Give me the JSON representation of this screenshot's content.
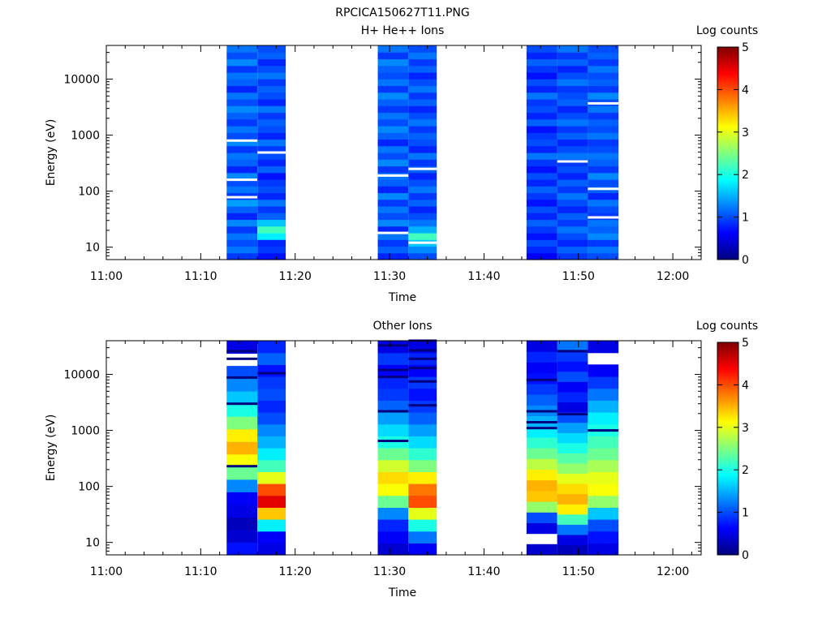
{
  "figure": {
    "title": "RPCICA150627T11.PNG"
  },
  "colormap": [
    "#00007f",
    "#0000ff",
    "#007fff",
    "#00ffff",
    "#7fff7f",
    "#ffff00",
    "#ff7f00",
    "#ff0000",
    "#7f0000"
  ],
  "chart_data": [
    {
      "type": "heatmap",
      "title": "H+ He++ Ions",
      "xlabel": "Time",
      "ylabel": "Energy (eV)",
      "x_ticks": [
        "11:00",
        "11:10",
        "11:20",
        "11:30",
        "11:40",
        "11:50",
        "12:00"
      ],
      "x_range": [
        "11:00",
        "12:03"
      ],
      "y_ticks": [
        "10",
        "100",
        "1000",
        "10000"
      ],
      "y_scale": "log",
      "y_range": [
        6,
        40000
      ],
      "colorbar": {
        "label": "Log counts",
        "ticks": [
          "0",
          "1",
          "2",
          "3",
          "4",
          "5"
        ],
        "range": [
          0,
          5
        ]
      },
      "columns": [
        {
          "start": "11:12:45",
          "end": "11:16:00",
          "profile": [
            0.9,
            1.2,
            1.0,
            1.2,
            0.9,
            1.3,
            0.8,
            1.1,
            1.4,
            0.9,
            1.2,
            1.0,
            1.3,
            0.8,
            1.1,
            1.2,
            0.9,
            1.3,
            1.0,
            1.2,
            0.9,
            1.1,
            1.3,
            1.0,
            1.2,
            0.8,
            1.1,
            1.2,
            0.9,
            1.3,
            1.0,
            1.2
          ],
          "gaps": [
            800,
            160,
            78
          ]
        },
        {
          "start": "11:16:00",
          "end": "11:19:00",
          "profile": [
            0.7,
            0.9,
            0.8,
            1.8,
            2.2,
            1.6,
            1.1,
            0.9,
            1.2,
            0.8,
            1.0,
            0.9,
            0.7,
            1.1,
            0.8,
            1.0,
            0.9,
            1.2,
            0.8,
            1.0,
            1.1,
            0.9,
            1.2,
            0.8,
            1.0,
            1.1,
            0.9,
            1.2,
            1.0,
            0.8,
            1.1,
            1.0
          ],
          "gaps": [
            490
          ]
        },
        {
          "start": "11:28:45",
          "end": "11:32:00",
          "profile": [
            0.8,
            1.1,
            0.9,
            1.2,
            0.8,
            1.3,
            1.0,
            1.2,
            0.9,
            1.3,
            0.8,
            1.1,
            1.2,
            0.9,
            1.3,
            1.0,
            1.2,
            0.8,
            1.1,
            1.3,
            1.0,
            1.2,
            0.9,
            1.1,
            1.3,
            0.9,
            1.2,
            1.0,
            1.1,
            1.3,
            0.9,
            1.2
          ],
          "gaps": [
            18,
            190
          ]
        },
        {
          "start": "11:32:00",
          "end": "11:35:00",
          "profile": [
            1.0,
            1.3,
            1.6,
            2.2,
            1.5,
            1.2,
            1.0,
            0.8,
            1.1,
            0.9,
            1.2,
            1.0,
            0.8,
            1.1,
            0.9,
            1.2,
            0.8,
            1.0,
            1.1,
            0.9,
            1.2,
            1.0,
            0.8,
            1.1,
            0.9,
            1.2,
            1.0,
            0.8,
            1.1,
            0.9,
            1.2,
            1.0
          ],
          "gaps": [
            12,
            250
          ]
        },
        {
          "start": "11:44:30",
          "end": "11:47:45",
          "profile": [
            0.6,
            0.8,
            1.0,
            0.7,
            0.9,
            1.1,
            0.8,
            1.0,
            0.7,
            0.9,
            1.1,
            0.8,
            1.0,
            0.7,
            0.9,
            1.2,
            0.8,
            1.0,
            0.9,
            0.7,
            1.1,
            0.8,
            1.0,
            0.9,
            1.2,
            0.8,
            1.0,
            0.7,
            0.9,
            1.1,
            0.8,
            1.0
          ],
          "gaps": []
        },
        {
          "start": "11:47:45",
          "end": "11:51:00",
          "profile": [
            0.9,
            1.1,
            0.8,
            1.0,
            1.2,
            0.9,
            1.1,
            0.8,
            1.0,
            1.2,
            0.9,
            1.1,
            0.8,
            1.0,
            0.9,
            1.2,
            1.0,
            0.8,
            1.1,
            0.9,
            1.2,
            1.0,
            0.8,
            1.1,
            1.0,
            0.9,
            1.2,
            1.0,
            0.8,
            1.1,
            0.9,
            1.2
          ],
          "gaps": [
            340
          ]
        },
        {
          "start": "11:51:00",
          "end": "11:54:15",
          "profile": [
            1.0,
            1.2,
            0.9,
            1.3,
            1.1,
            1.2,
            0.9,
            1.0,
            1.2,
            0.8,
            1.1,
            1.0,
            1.3,
            0.9,
            1.1,
            1.2,
            1.0,
            0.9,
            1.2,
            1.0,
            1.1,
            0.9,
            1.2,
            1.0,
            1.3,
            0.9,
            1.1,
            1.0,
            1.2,
            0.9,
            1.1,
            1.0
          ],
          "gaps": [
            34,
            110,
            3700
          ]
        }
      ]
    },
    {
      "type": "heatmap",
      "title": "Other Ions",
      "xlabel": "Time",
      "ylabel": "Energy (eV)",
      "x_ticks": [
        "11:00",
        "11:10",
        "11:20",
        "11:30",
        "11:40",
        "11:50",
        "12:00"
      ],
      "x_range": [
        "11:00",
        "12:03"
      ],
      "y_ticks": [
        "10",
        "100",
        "1000",
        "10000"
      ],
      "y_scale": "log",
      "y_range": [
        6,
        40000
      ],
      "colorbar": {
        "label": "Log counts",
        "ticks": [
          "0",
          "1",
          "2",
          "3",
          "4",
          "5"
        ],
        "range": [
          0,
          5
        ]
      },
      "columns": [
        {
          "start": "11:12:45",
          "end": "11:16:00",
          "profile": [
            0.7,
            0.4,
            0.3,
            0.5,
            0.6,
            1.3,
            2.4,
            3.1,
            3.5,
            3.2,
            2.5,
            2.0,
            1.6,
            1.3,
            1.0,
            0.0,
            0.5
          ],
          "sparse": [
            230,
            3000,
            8800,
            19000,
            26000
          ]
        },
        {
          "start": "11:16:00",
          "end": "11:19:00",
          "profile": [
            0.5,
            0.6,
            1.8,
            3.4,
            4.5,
            4.0,
            3.0,
            2.2,
            1.8,
            1.5,
            1.3,
            1.0,
            0.8,
            1.0,
            0.9,
            0.7,
            1.1,
            0.8
          ],
          "sparse": [
            10500
          ]
        },
        {
          "start": "11:28:45",
          "end": "11:32:00",
          "profile": [
            0.4,
            0.6,
            0.8,
            1.3,
            2.4,
            3.1,
            3.3,
            2.9,
            2.4,
            2.0,
            1.7,
            1.4,
            1.1,
            0.9,
            0.8,
            0.6,
            0.9,
            0.5
          ],
          "sparse": [
            650,
            2200,
            9000,
            12000,
            33000
          ]
        },
        {
          "start": "11:32:00",
          "end": "11:35:00",
          "profile": [
            0.6,
            1.2,
            2.0,
            3.0,
            4.0,
            3.8,
            3.2,
            2.5,
            2.1,
            1.7,
            1.4,
            1.1,
            0.9,
            0.7,
            0.9,
            0.6,
            0.8,
            0.5
          ],
          "sparse": [
            2800,
            7500,
            13000,
            19000,
            27000,
            40000
          ]
        },
        {
          "start": "11:44:30",
          "end": "11:47:45",
          "profile": [
            0.4,
            0.0,
            0.5,
            1.0,
            2.6,
            3.4,
            3.5,
            3.2,
            2.8,
            2.4,
            2.1,
            1.8,
            1.5,
            1.3,
            1.1,
            0.9,
            0.7,
            0.6,
            0.8,
            0.5
          ],
          "sparse": [
            1100,
            1400,
            2200,
            8000
          ]
        },
        {
          "start": "11:47:45",
          "end": "11:51:00",
          "profile": [
            0.3,
            0.5,
            1.2,
            2.2,
            3.2,
            3.5,
            3.3,
            3.0,
            2.6,
            2.3,
            2.0,
            1.7,
            1.4,
            1.0,
            0.5,
            0.8,
            0.6,
            1.0,
            0.7,
            0.9,
            1.2
          ],
          "sparse": [
            1950,
            26000
          ]
        },
        {
          "start": "11:51:00",
          "end": "11:54:15",
          "profile": [
            0.5,
            0.7,
            1.0,
            1.6,
            2.6,
            3.1,
            3.0,
            2.7,
            2.4,
            2.2,
            2.0,
            1.8,
            1.5,
            1.2,
            0.9,
            0.6,
            0.0,
            0.5
          ],
          "sparse": [
            1000
          ]
        }
      ]
    }
  ]
}
